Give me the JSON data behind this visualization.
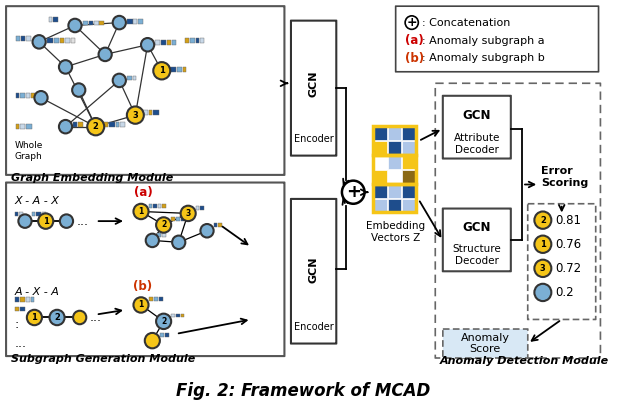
{
  "title": "Fig. 2: Framework of MCAD",
  "title_fontsize": 12,
  "bg_color": "#ffffff",
  "node_blue": "#7bafd4",
  "node_gold": "#f5c518",
  "dark_blue": "#1e4d8c",
  "legend_a_color": "#cc0000",
  "legend_b_color": "#cc3300",
  "score_values": [
    "0.81",
    "0.76",
    "0.72",
    "0.2"
  ],
  "score_nodes": [
    "2",
    "1",
    "3",
    ""
  ],
  "score_node_types": [
    "gold",
    "gold",
    "gold",
    "blue"
  ],
  "emb_colors": [
    [
      "#1e4d8c",
      "#aec6e8",
      "#1e4d8c"
    ],
    [
      "#f5c518",
      "#1e4d8c",
      "#aec6e8"
    ],
    [
      "#ffffff",
      "#aec6e8",
      "#f5c518"
    ],
    [
      "#f5c518",
      "#ffffff",
      "#8b6914"
    ],
    [
      "#1e4d8c",
      "#aec6e8",
      "#1e4d8c"
    ],
    [
      "#aec6e8",
      "#1e4d8c",
      "#aec6e8"
    ]
  ]
}
